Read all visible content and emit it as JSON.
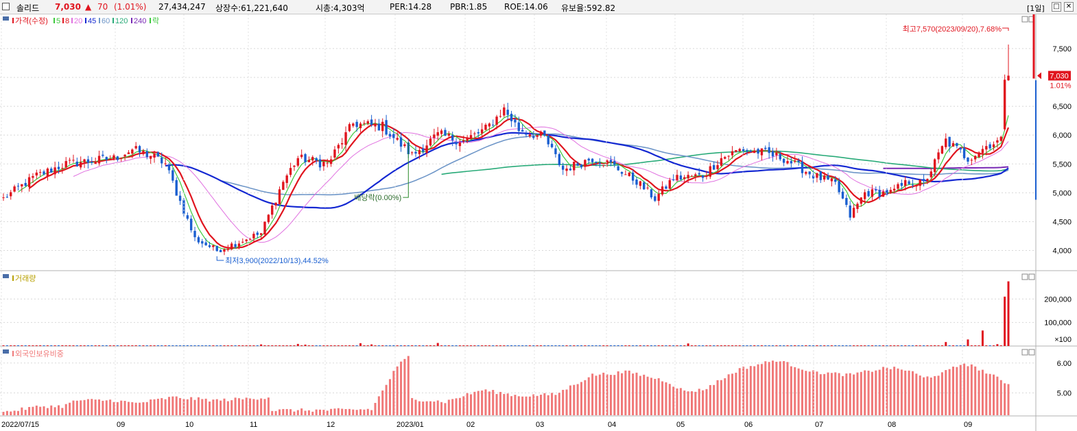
{
  "header": {
    "stock_name": "솔리드",
    "price": "7,030",
    "change_arrow": "▲",
    "change": "70",
    "change_pct": "(1.01%)",
    "volume": "27,434,247",
    "listed_shares": "상장수:61,221,640",
    "market_cap": "시총:4,303억",
    "per": "PER:14.28",
    "pbr": "PBR:1.85",
    "roe": "ROE:14.06",
    "float_ratio": "유보율:592.82",
    "period": "[1일]"
  },
  "colors": {
    "up": "#e0141e",
    "down": "#1a5fd0",
    "ma5": "#3cc83c",
    "ma8": "#e0141e",
    "ma20": "#e070e0",
    "ma45": "#1428d2",
    "ma60": "#6e96c8",
    "ma120": "#28aa78",
    "ma240": "#7828b4",
    "foreign": "#f07878"
  },
  "chart_data": [
    {
      "type": "candlestick",
      "legend": [
        {
          "label": "가격(수정)",
          "color": "#e0141e"
        },
        {
          "label": "5",
          "color": "#3cc83c"
        },
        {
          "label": "8",
          "color": "#e0141e"
        },
        {
          "label": "20",
          "color": "#e070e0"
        },
        {
          "label": "45",
          "color": "#1428d2"
        },
        {
          "label": "60",
          "color": "#6e96c8"
        },
        {
          "label": "120",
          "color": "#28aa78"
        },
        {
          "label": "240",
          "color": "#7828b4"
        },
        {
          "label": "락",
          "color": "#3cc83c"
        }
      ],
      "ylim": [
        3650,
        7950
      ],
      "y_ticks": [
        4000,
        4500,
        5000,
        5500,
        6000,
        6500,
        7000,
        7500
      ],
      "y_tick_labels": [
        "4,000",
        "4,500",
        "5,000",
        "5,500",
        "6,000",
        "6,500",
        "",
        "7,500"
      ],
      "x_labels": [
        "2022/07/15",
        "09",
        "10",
        "11",
        "12",
        "2023/01",
        "02",
        "03",
        "04",
        "05",
        "06",
        "07",
        "08",
        "09"
      ],
      "close_keyframes": [
        [
          0,
          4900
        ],
        [
          9,
          5300
        ],
        [
          17,
          5500
        ],
        [
          30,
          5600
        ],
        [
          35,
          5750
        ],
        [
          40,
          5650
        ],
        [
          44,
          5500
        ],
        [
          52,
          4200
        ],
        [
          58,
          4000
        ],
        [
          64,
          4150
        ],
        [
          70,
          4300
        ],
        [
          76,
          5200
        ],
        [
          80,
          5600
        ],
        [
          88,
          5500
        ],
        [
          95,
          6200
        ],
        [
          103,
          6150
        ],
        [
          111,
          5650
        ],
        [
          118,
          6000
        ],
        [
          125,
          5900
        ],
        [
          131,
          6100
        ],
        [
          136,
          6450
        ],
        [
          140,
          6100
        ],
        [
          147,
          5950
        ],
        [
          152,
          5400
        ],
        [
          160,
          5600
        ],
        [
          165,
          5500
        ],
        [
          172,
          5200
        ],
        [
          177,
          4900
        ],
        [
          182,
          5250
        ],
        [
          190,
          5300
        ],
        [
          195,
          5600
        ],
        [
          200,
          5750
        ],
        [
          206,
          5700
        ],
        [
          212,
          5600
        ],
        [
          220,
          5300
        ],
        [
          226,
          5150
        ],
        [
          230,
          4600
        ],
        [
          234,
          5000
        ],
        [
          241,
          5000
        ],
        [
          246,
          5200
        ],
        [
          250,
          5150
        ],
        [
          256,
          5900
        ],
        [
          262,
          5600
        ],
        [
          268,
          5850
        ],
        [
          271,
          5900
        ],
        [
          272,
          6960
        ],
        [
          273,
          7030
        ]
      ],
      "annotations": {
        "high": "최고7,570(2023/09/20),7.68%",
        "low": "최저3,900(2022/10/13),44.52%",
        "dividend": "배당락(0.00%)",
        "last_price": "7,030",
        "last_pct": "1.01%"
      }
    },
    {
      "type": "bar",
      "legend": [
        {
          "label": "거래량",
          "color": "#b8a000"
        }
      ],
      "ylim": [
        0,
        300000
      ],
      "y_tick_labels": [
        "200,000",
        "100,000",
        "×100"
      ],
      "last_values": [
        210000,
        275000
      ]
    },
    {
      "type": "bar",
      "legend": [
        {
          "label": "외국인보유비중",
          "color": "#f07878"
        }
      ],
      "ylim": [
        4.25,
        6.5
      ],
      "y_tick_labels": [
        "6.00",
        "5.00"
      ],
      "keyframes": [
        [
          0,
          4.35
        ],
        [
          10,
          4.55
        ],
        [
          16,
          4.55
        ],
        [
          20,
          4.75
        ],
        [
          30,
          4.75
        ],
        [
          36,
          4.65
        ],
        [
          46,
          4.85
        ],
        [
          58,
          4.75
        ],
        [
          72,
          4.85
        ],
        [
          73,
          4.42
        ],
        [
          88,
          4.42
        ],
        [
          100,
          4.45
        ],
        [
          107,
          5.9
        ],
        [
          110,
          6.2
        ],
        [
          111,
          4.8
        ],
        [
          120,
          4.7
        ],
        [
          130,
          5.1
        ],
        [
          140,
          4.9
        ],
        [
          150,
          4.95
        ],
        [
          160,
          5.6
        ],
        [
          170,
          5.7
        ],
        [
          180,
          5.4
        ],
        [
          185,
          5.05
        ],
        [
          190,
          5.1
        ],
        [
          200,
          5.8
        ],
        [
          210,
          6.1
        ],
        [
          220,
          5.7
        ],
        [
          230,
          5.6
        ],
        [
          240,
          5.85
        ],
        [
          246,
          5.75
        ],
        [
          250,
          5.5
        ],
        [
          255,
          5.65
        ],
        [
          261,
          6.0
        ],
        [
          266,
          5.75
        ],
        [
          273,
          5.3
        ]
      ]
    }
  ]
}
